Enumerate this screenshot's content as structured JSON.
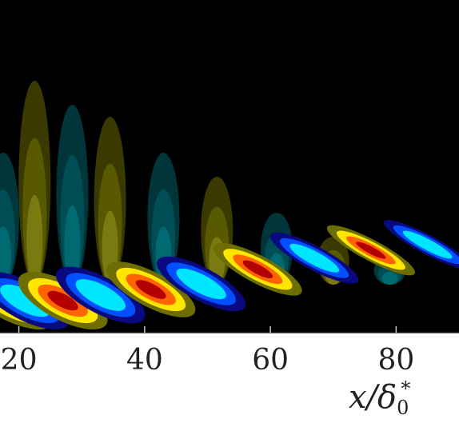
{
  "chart_data": {
    "type": "heatmap",
    "title": "",
    "xlabel": "x/δ0*",
    "xlabel_parts": {
      "main": "x/δ",
      "sub": "0",
      "sup": "*"
    },
    "ylabel": "",
    "xlim": [
      17,
      90
    ],
    "x_ticks": [
      {
        "value": 20,
        "label": "20"
      },
      {
        "value": 40,
        "label": "40"
      },
      {
        "value": 60,
        "label": "60"
      },
      {
        "value": 80,
        "label": "80"
      }
    ],
    "colormap": [
      "#00e6ff",
      "#0050ff",
      "#0a0a80",
      "#000000",
      "#6e6e00",
      "#ffe600",
      "#ff6400",
      "#b40000"
    ],
    "background": "#000000",
    "lobes": [
      {
        "x": 18.5,
        "sign": 1,
        "amplitude": 1.0
      },
      {
        "x": 21.0,
        "sign": -1,
        "amplitude": 1.0
      },
      {
        "x": 27.0,
        "sign": 1,
        "amplitude": 1.0
      },
      {
        "x": 33.0,
        "sign": -1,
        "amplitude": 0.95
      },
      {
        "x": 41.0,
        "sign": 1,
        "amplitude": 0.9
      },
      {
        "x": 49.0,
        "sign": -1,
        "amplitude": 0.85
      },
      {
        "x": 58.0,
        "sign": 1,
        "amplitude": 0.72
      },
      {
        "x": 67.0,
        "sign": -1,
        "amplitude": 0.62
      },
      {
        "x": 76.0,
        "sign": 1,
        "amplitude": 0.55
      },
      {
        "x": 85.0,
        "sign": -1,
        "amplitude": 0.5
      }
    ],
    "upper_plumes": [
      {
        "x": 17.5,
        "sign": -1,
        "height": 0.55
      },
      {
        "x": 22.5,
        "sign": 1,
        "height": 0.85
      },
      {
        "x": 28.5,
        "sign": -1,
        "height": 0.75
      },
      {
        "x": 34.5,
        "sign": 1,
        "height": 0.7
      },
      {
        "x": 43.0,
        "sign": -1,
        "height": 0.55
      },
      {
        "x": 51.5,
        "sign": 1,
        "height": 0.45
      },
      {
        "x": 61.0,
        "sign": -1,
        "height": 0.3
      },
      {
        "x": 70.0,
        "sign": 1,
        "height": 0.2
      },
      {
        "x": 79.0,
        "sign": -1,
        "height": 0.12
      }
    ]
  }
}
